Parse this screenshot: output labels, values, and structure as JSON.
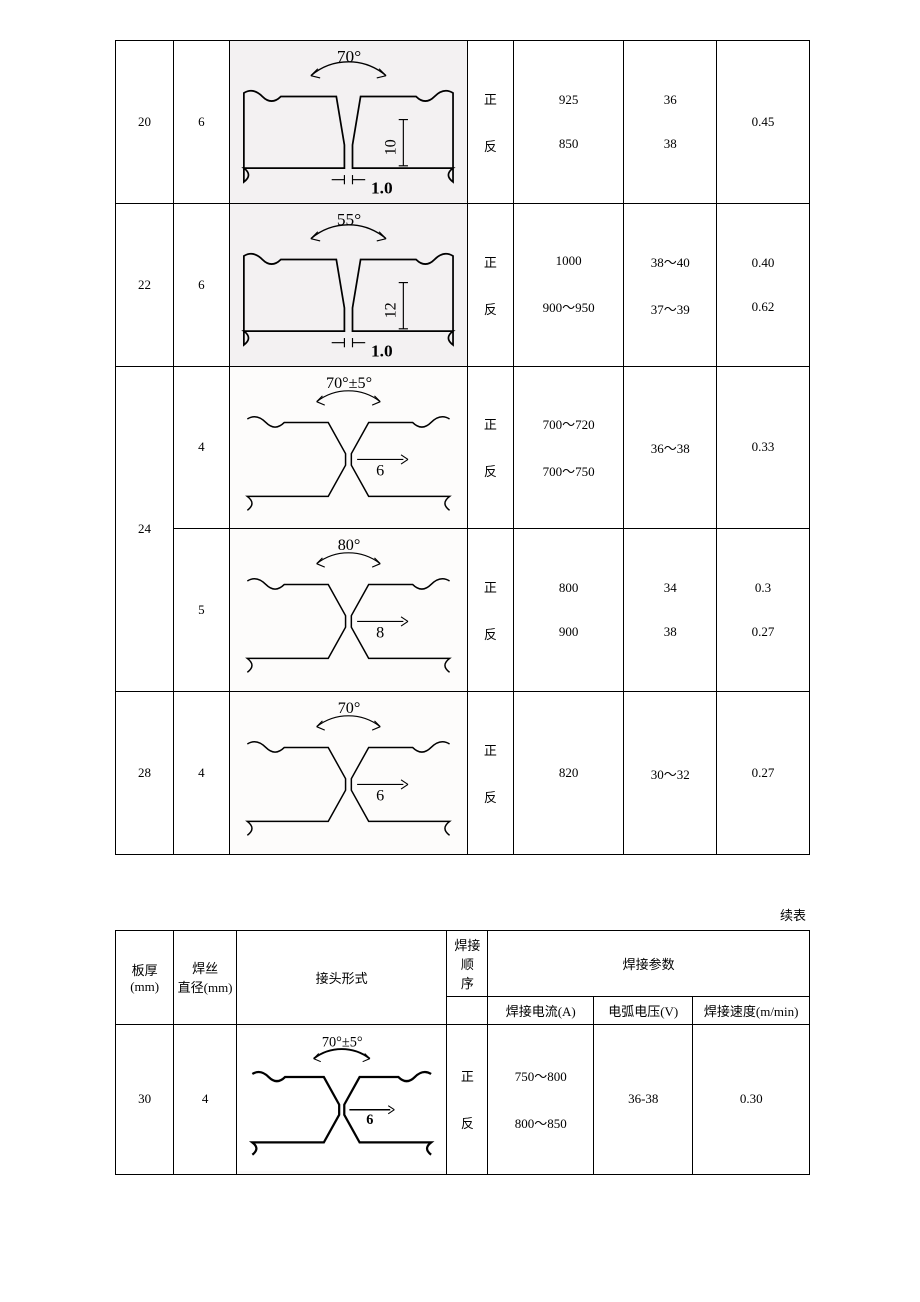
{
  "continued_label": "续表",
  "side_labels": {
    "front": "正",
    "back": "反"
  },
  "table1": {
    "col_widths": [
      "50",
      "48",
      "205",
      "40",
      "95",
      "80",
      "80"
    ],
    "rows": [
      {
        "thickness": "20",
        "wire": "6",
        "diagram": {
          "type": "single-v",
          "angle": "70°",
          "root_face": "10",
          "gap": "1.0",
          "bg": "#f3f1f2"
        },
        "front": {
          "current": "925",
          "voltage": "36",
          "speed": ""
        },
        "back": {
          "current": "850",
          "voltage": "38",
          "speed": ""
        },
        "speed_merged": "0.45"
      },
      {
        "thickness": "22",
        "wire": "6",
        "diagram": {
          "type": "single-v",
          "angle": "55°",
          "root_face": "12",
          "gap": "1.0",
          "bg": "#f3f1f2"
        },
        "front": {
          "current": "1000",
          "voltage": "38～40",
          "speed": "0.40"
        },
        "back": {
          "current": "900～950",
          "voltage": "37～39",
          "speed": "0.62"
        }
      },
      {
        "thickness": "24",
        "thickness_rowspan": 2,
        "wire": "4",
        "diagram": {
          "type": "double-v",
          "angle": "70°±5°",
          "root_face": "6",
          "bg": "#fdfcfb"
        },
        "front": {
          "current": "700～720",
          "voltage": "",
          "speed": ""
        },
        "back": {
          "current": "700～750",
          "voltage": "",
          "speed": ""
        },
        "voltage_merged": "36～38",
        "speed_merged": "0.33"
      },
      {
        "wire": "5",
        "diagram": {
          "type": "double-v",
          "angle": "80°",
          "root_face": "8",
          "bg": "#fdfcfb"
        },
        "front": {
          "current": "800",
          "voltage": "34",
          "speed": "0.3"
        },
        "back": {
          "current": "900",
          "voltage": "38",
          "speed": "0.27"
        }
      },
      {
        "thickness": "28",
        "wire": "4",
        "diagram": {
          "type": "double-v",
          "angle": "70°",
          "root_face": "6",
          "bg": "#fdfcfb"
        },
        "current_merged": "820",
        "voltage_merged": "30～32",
        "speed_merged": "0.27"
      }
    ]
  },
  "table2": {
    "headers": {
      "thickness": "板厚\n(mm)",
      "wire": "焊丝\n直径(mm)",
      "joint": "接头形式",
      "seq": "焊接顺\n序",
      "params": "焊接参数",
      "current": "焊接电流(A)",
      "voltage": "电弧电压(V)",
      "speed": "焊接速度(m/min)"
    },
    "col_widths": [
      "54",
      "58",
      "195",
      "38",
      "98",
      "92",
      "108"
    ],
    "row": {
      "thickness": "30",
      "wire": "4",
      "diagram": {
        "type": "double-v",
        "angle": "70°±5°",
        "root_face": "6",
        "bg": "#ffffff",
        "bold": true
      },
      "front_current": "750～800",
      "back_current": "800～850",
      "voltage": "36-38",
      "speed": "0.30"
    }
  }
}
